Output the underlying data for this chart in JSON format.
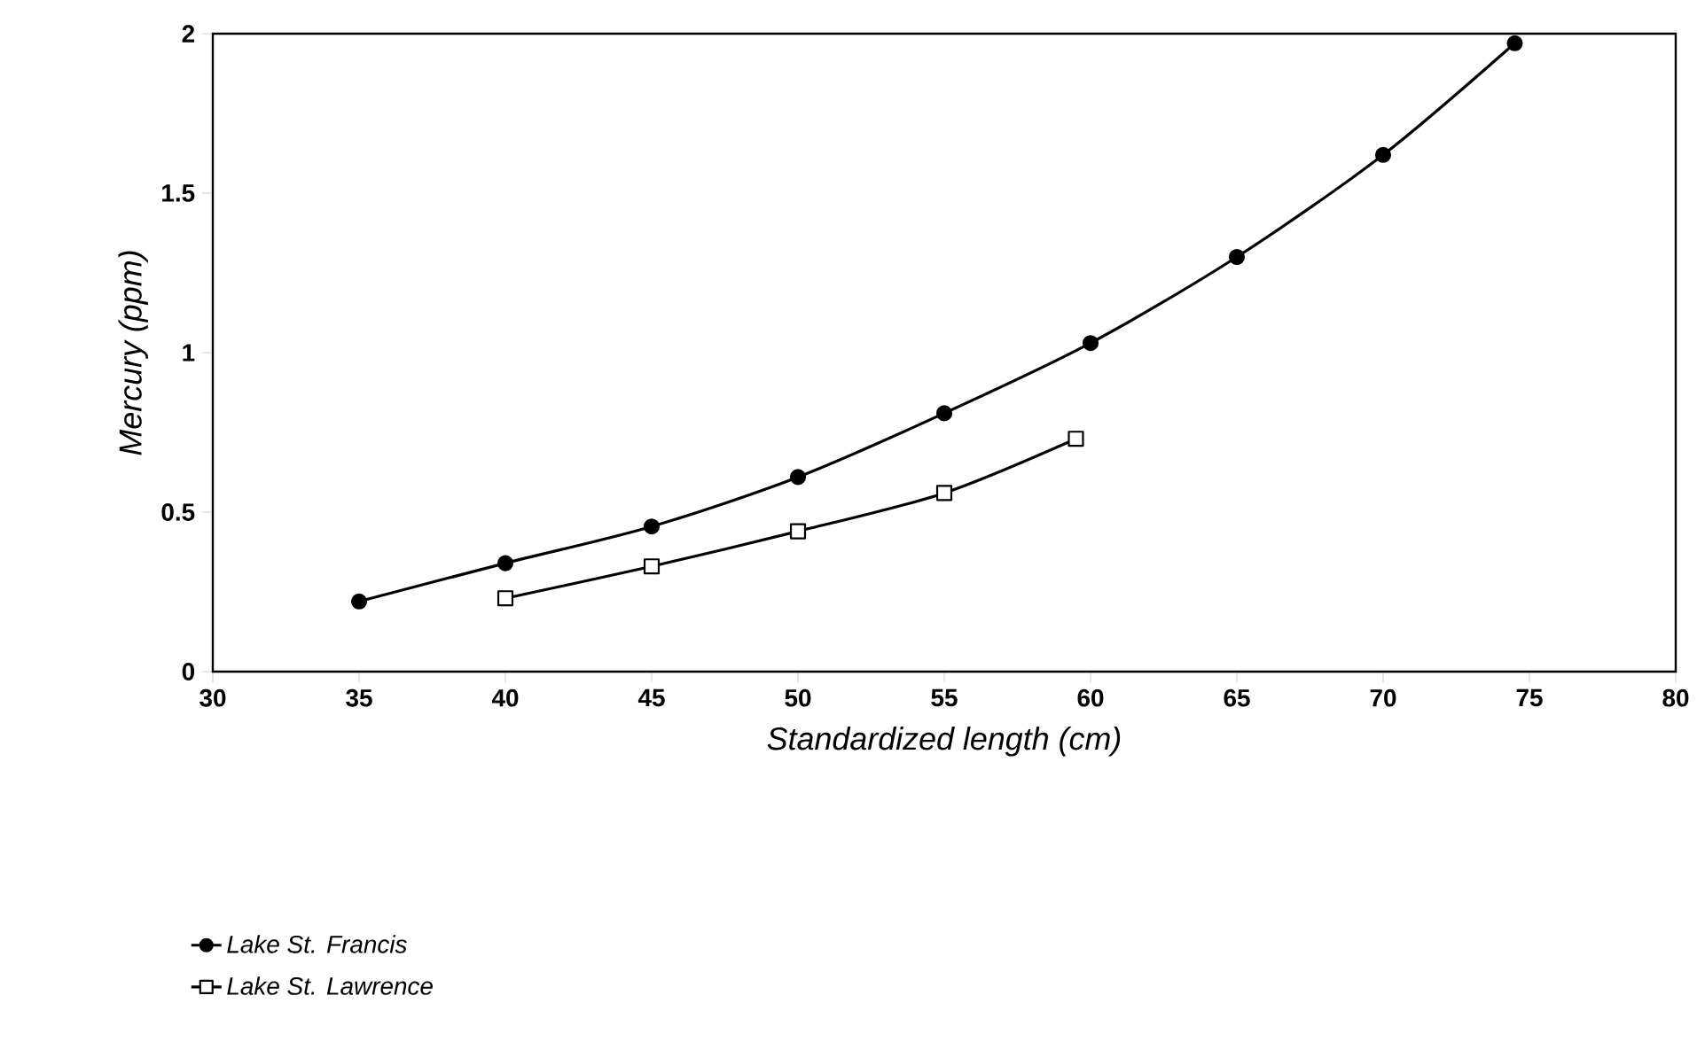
{
  "chart_data": {
    "type": "line",
    "xlabel": "Standardized length (cm)",
    "ylabel": "Mercury (ppm)",
    "xlim": [
      30,
      80
    ],
    "xticks": [
      30,
      35,
      40,
      45,
      50,
      55,
      60,
      65,
      70,
      75,
      80
    ],
    "ylim": [
      0,
      2
    ],
    "yticks": [
      0,
      0.5,
      1,
      1.5,
      2
    ],
    "legend": "bottom left",
    "grid": false,
    "series": [
      {
        "name": "Lake St. Francis",
        "color": "#000000",
        "marker": "circle",
        "x": [
          35,
          40,
          45,
          50,
          55,
          60,
          65,
          70,
          74.5
        ],
        "values": [
          0.22,
          0.34,
          0.455,
          0.61,
          0.81,
          1.03,
          1.3,
          1.62,
          1.97
        ]
      },
      {
        "name": "Lake St. Lawrence",
        "color": "#000000",
        "marker": "square",
        "x": [
          40,
          45,
          50,
          55,
          59.5
        ],
        "values": [
          0.23,
          0.33,
          0.44,
          0.56,
          0.73
        ]
      }
    ]
  }
}
